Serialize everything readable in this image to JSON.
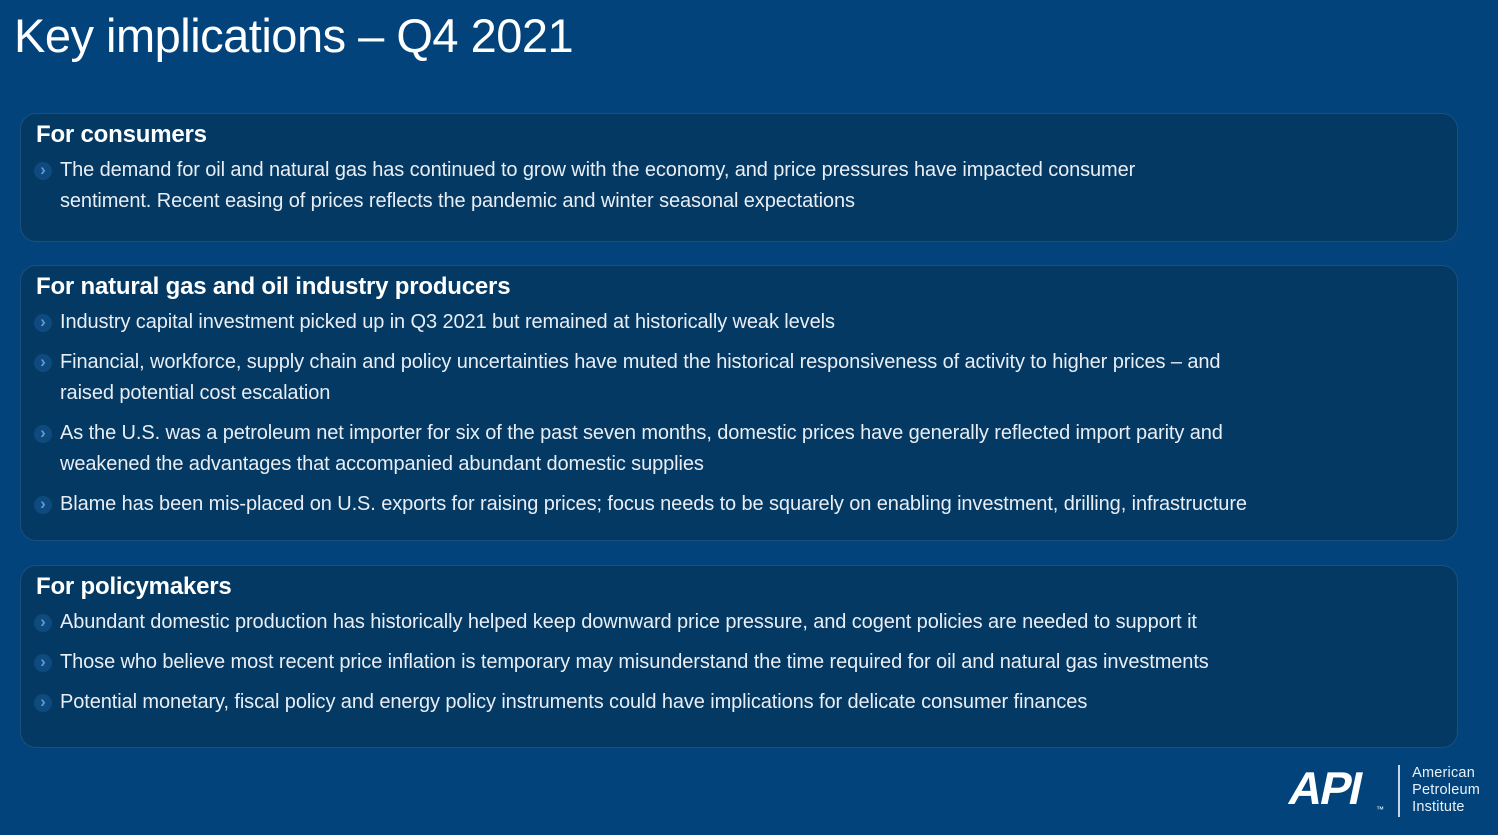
{
  "page": {
    "title": "Key implications – Q4 2021"
  },
  "colors": {
    "page_background": "#03437b",
    "panel_background": "#043963",
    "heading_text": "#ffffff",
    "body_text": "#e9eef5",
    "bullet_circle": "#0e4a7e",
    "bullet_chevron": "#5c9bd4"
  },
  "icons": {
    "bullet": "chevron-circle-icon",
    "logo": "api-logo"
  },
  "sections": [
    {
      "heading": "For consumers",
      "bullets": [
        "The demand for oil and natural gas has continued to grow with the economy, and price pressures have impacted consumer\nsentiment.  Recent easing of prices reflects the pandemic and winter seasonal expectations"
      ]
    },
    {
      "heading": "For natural gas and oil industry producers",
      "bullets": [
        "Industry capital investment picked up in Q3 2021 but remained at historically weak levels",
        "Financial, workforce, supply chain and policy uncertainties have muted the historical responsiveness of activity to higher prices – and\nraised potential cost escalation",
        "As the U.S. was a petroleum net importer for six of the past seven months, domestic prices have generally reflected import parity and\nweakened the advantages that accompanied abundant domestic supplies",
        "Blame has been mis-placed on U.S. exports for raising prices; focus needs to be squarely on enabling investment, drilling, infrastructure"
      ]
    },
    {
      "heading": "For policymakers",
      "bullets": [
        "Abundant domestic production has historically helped keep downward price pressure, and cogent policies are needed to support it",
        "Those who believe most recent price inflation is temporary may misunderstand the time required for oil and natural gas investments",
        "Potential monetary, fiscal policy and energy policy instruments could have implications for delicate consumer finances"
      ]
    }
  ],
  "logo": {
    "acronym": "API",
    "trademark": "™",
    "org_lines": [
      "American",
      "Petroleum",
      "Institute"
    ]
  }
}
